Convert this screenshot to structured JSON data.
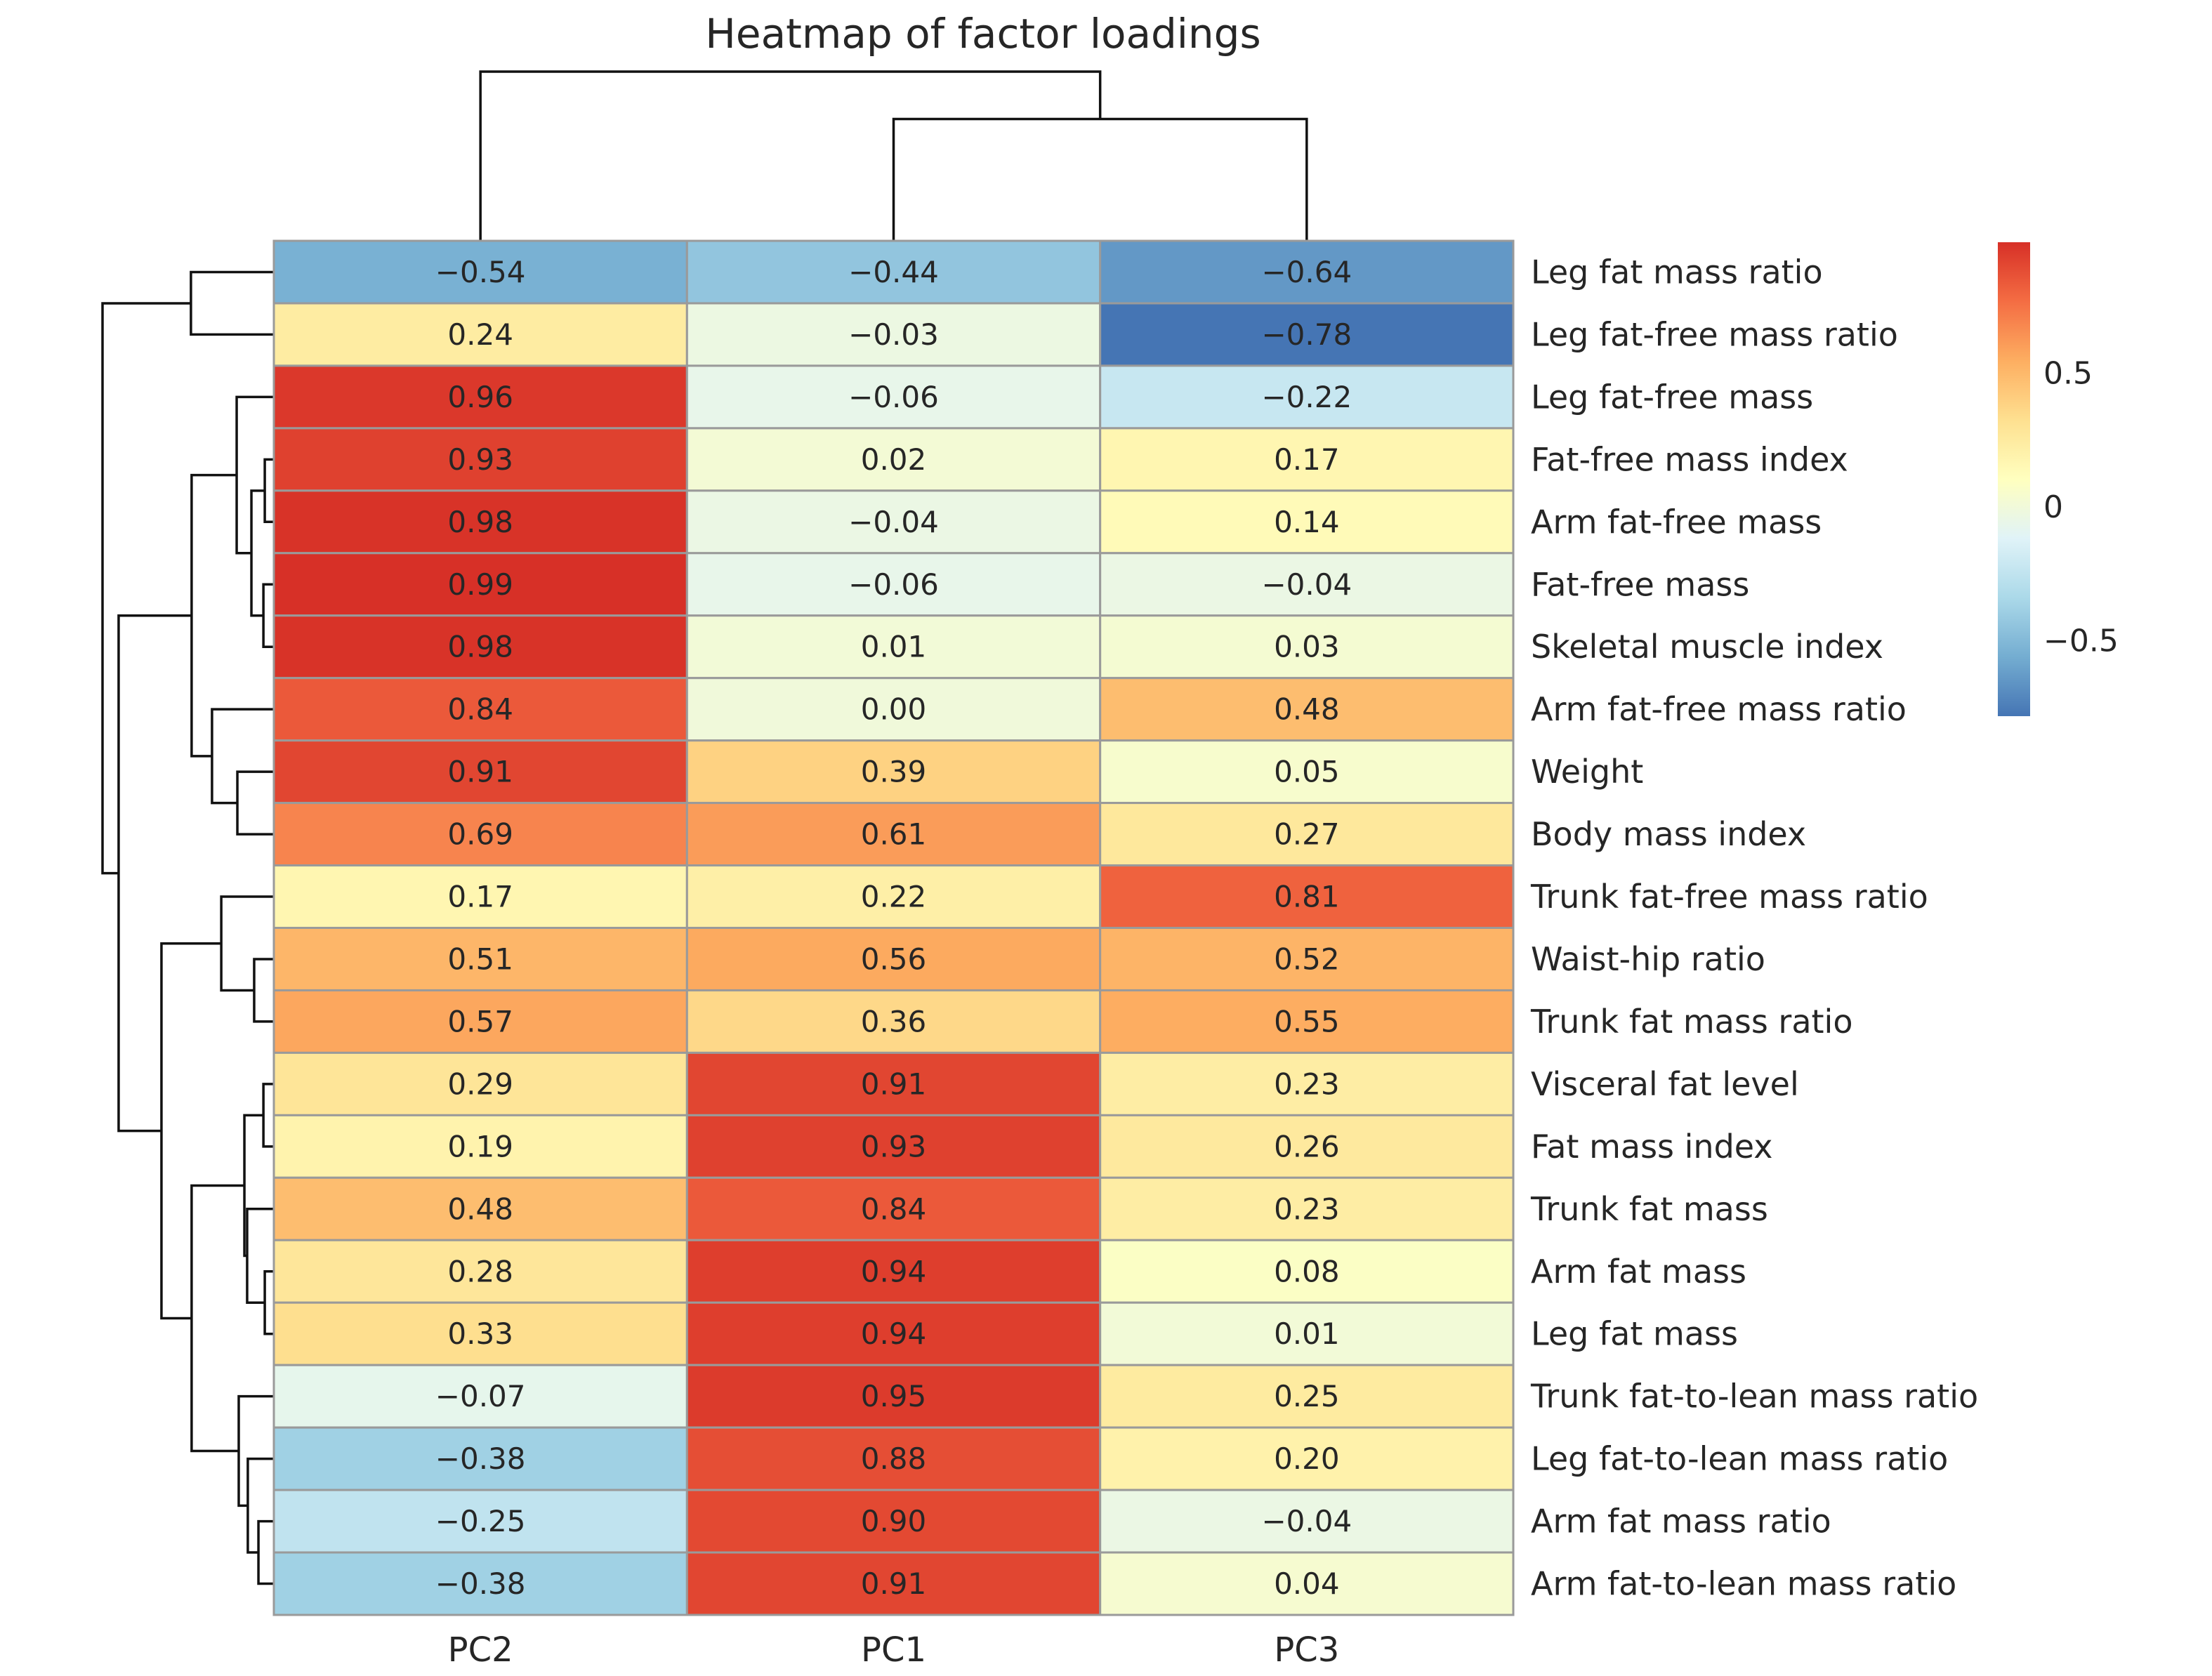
{
  "title": "Heatmap of factor loadings",
  "colors": {
    "background": "#ffffff",
    "grid": "#9a9a9a",
    "dendro": "#111111",
    "text": "#262626"
  },
  "chart_data": {
    "type": "heatmap",
    "title": "Heatmap of factor loadings",
    "columns": [
      "PC2",
      "PC1",
      "PC3"
    ],
    "rows": [
      "Leg fat mass ratio",
      "Leg fat-free mass ratio",
      "Leg fat-free mass",
      "Fat-free mass index",
      "Arm fat-free mass",
      "Fat-free mass",
      "Skeletal muscle index",
      "Arm fat-free mass ratio",
      "Weight",
      "Body mass index",
      "Trunk fat-free mass ratio",
      "Waist-hip ratio",
      "Trunk fat mass ratio",
      "Visceral fat level",
      "Fat mass index",
      "Trunk fat mass",
      "Arm fat mass",
      "Leg fat mass",
      "Trunk fat-to-lean mass ratio",
      "Leg fat-to-lean mass ratio",
      "Arm fat mass ratio",
      "Arm fat-to-lean mass ratio"
    ],
    "values": [
      [
        -0.54,
        -0.44,
        -0.64
      ],
      [
        0.24,
        -0.03,
        -0.78
      ],
      [
        0.96,
        -0.06,
        -0.22
      ],
      [
        0.93,
        0.02,
        0.17
      ],
      [
        0.98,
        -0.04,
        0.14
      ],
      [
        0.99,
        -0.06,
        -0.04
      ],
      [
        0.98,
        0.01,
        0.03
      ],
      [
        0.84,
        0.0,
        0.48
      ],
      [
        0.91,
        0.39,
        0.05
      ],
      [
        0.69,
        0.61,
        0.27
      ],
      [
        0.17,
        0.22,
        0.81
      ],
      [
        0.51,
        0.56,
        0.52
      ],
      [
        0.57,
        0.36,
        0.55
      ],
      [
        0.29,
        0.91,
        0.23
      ],
      [
        0.19,
        0.93,
        0.26
      ],
      [
        0.48,
        0.84,
        0.23
      ],
      [
        0.28,
        0.94,
        0.08
      ],
      [
        0.33,
        0.94,
        0.01
      ],
      [
        -0.07,
        0.95,
        0.25
      ],
      [
        -0.38,
        0.88,
        0.2
      ],
      [
        -0.25,
        0.9,
        -0.04
      ],
      [
        -0.38,
        0.91,
        0.04
      ]
    ],
    "annotation_decimals": 2,
    "vmin": -0.78,
    "vmax": 0.99,
    "palette_low_to_high": [
      "#4575b4",
      "#74add1",
      "#abd9e9",
      "#e0f3f8",
      "#ffffbf",
      "#fee090",
      "#fdae61",
      "#f46d43",
      "#d73027"
    ],
    "colorbar": {
      "ticks": [
        {
          "value": 0.5,
          "label": "0.5"
        },
        {
          "value": 0,
          "label": "0"
        },
        {
          "value": -0.5,
          "label": "−0.5"
        }
      ]
    },
    "row_dendrogram": [
      {
        "id": "m0",
        "a": "L3",
        "b": "L4",
        "d": 0.053
      },
      {
        "id": "m1",
        "a": "L5",
        "b": "L6",
        "d": 0.061
      },
      {
        "id": "m2",
        "a": "L13",
        "b": "L14",
        "d": 0.061
      },
      {
        "id": "m3",
        "a": "L16",
        "b": "L17",
        "d": 0.053
      },
      {
        "id": "m4",
        "a": "L20",
        "b": "L21",
        "d": 0.09
      },
      {
        "id": "m5",
        "a": "L11",
        "b": "L12",
        "d": 0.115
      },
      {
        "id": "m6",
        "a": "m0",
        "b": "m1",
        "d": 0.131
      },
      {
        "id": "m7",
        "a": "L19",
        "b": "m4",
        "d": 0.152
      },
      {
        "id": "m8",
        "a": "L15",
        "b": "m3",
        "d": 0.156
      },
      {
        "id": "m9",
        "a": "m2",
        "b": "m8",
        "d": 0.172
      },
      {
        "id": "m10",
        "a": "L18",
        "b": "m7",
        "d": 0.205
      },
      {
        "id": "m11",
        "a": "L8",
        "b": "L9",
        "d": 0.213
      },
      {
        "id": "m12",
        "a": "L2",
        "b": "m6",
        "d": 0.217
      },
      {
        "id": "m13",
        "a": "L10",
        "b": "m5",
        "d": 0.307
      },
      {
        "id": "m14",
        "a": "L7",
        "b": "m11",
        "d": 0.361
      },
      {
        "id": "m15",
        "a": "m12",
        "b": "m14",
        "d": 0.48
      },
      {
        "id": "m16",
        "a": "m9",
        "b": "m10",
        "d": 0.48
      },
      {
        "id": "m17",
        "a": "L0",
        "b": "L1",
        "d": 0.484
      },
      {
        "id": "m18",
        "a": "m13",
        "b": "m16",
        "d": 0.656
      },
      {
        "id": "m19",
        "a": "m15",
        "b": "m18",
        "d": 0.906
      },
      {
        "id": "m20",
        "a": "m17",
        "b": "m19",
        "d": 1.0
      }
    ],
    "col_dendrogram": [
      {
        "id": "c0",
        "a": "L1",
        "b": "L2",
        "d": 0.72
      },
      {
        "id": "c1",
        "a": "L0",
        "b": "c0",
        "d": 1.0
      }
    ]
  }
}
